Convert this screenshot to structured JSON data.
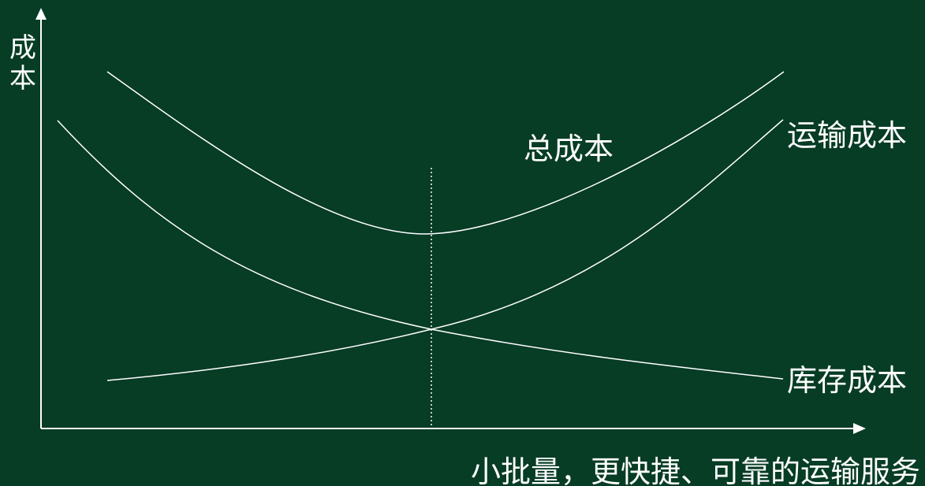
{
  "diagram": {
    "y_axis_label_chars": [
      "成",
      "本"
    ],
    "x_axis_label": "小批量，更快捷、可靠的运输服务",
    "curves": {
      "total": "总成本",
      "transport": "运输成本",
      "inventory": "库存成本"
    },
    "colors": {
      "background": "#073C25",
      "line": "#FFFFFF"
    }
  }
}
